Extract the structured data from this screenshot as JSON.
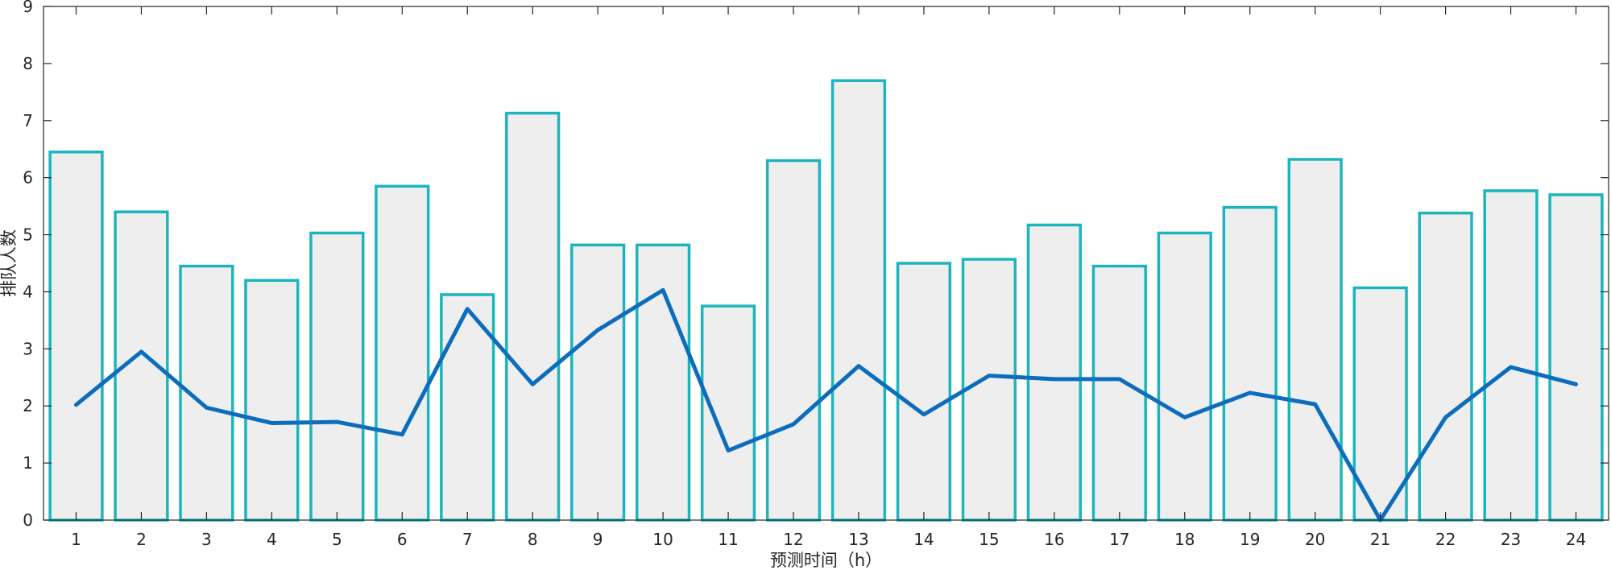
{
  "chart_data": {
    "type": "bar",
    "title": "",
    "xlabel": "预测时间（h）",
    "ylabel": "排队人数",
    "ylim": [
      0,
      9
    ],
    "yticks": [
      0,
      1,
      2,
      3,
      4,
      5,
      6,
      7,
      8,
      9
    ],
    "grid": false,
    "categories": [
      "1",
      "2",
      "3",
      "4",
      "5",
      "6",
      "7",
      "8",
      "9",
      "10",
      "11",
      "12",
      "13",
      "14",
      "15",
      "16",
      "17",
      "18",
      "19",
      "20",
      "21",
      "22",
      "23",
      "24"
    ],
    "series": [
      {
        "type": "bar",
        "values": [
          6.45,
          5.4,
          4.45,
          4.2,
          5.03,
          5.85,
          3.95,
          7.13,
          4.82,
          4.82,
          3.75,
          6.3,
          7.7,
          4.5,
          4.57,
          5.17,
          4.45,
          5.03,
          5.48,
          6.32,
          4.07,
          5.38,
          5.77,
          5.7
        ],
        "face_color": "#eeeeee",
        "edge_color": "#1cb5bf"
      },
      {
        "type": "line",
        "values": [
          2.02,
          2.95,
          1.97,
          1.7,
          1.72,
          1.5,
          3.7,
          2.38,
          3.33,
          4.03,
          1.22,
          1.68,
          2.7,
          1.85,
          2.53,
          2.47,
          2.47,
          1.8,
          2.23,
          2.03,
          0.0,
          1.8,
          2.68,
          2.38
        ],
        "color": "#0c6dbd"
      }
    ]
  }
}
